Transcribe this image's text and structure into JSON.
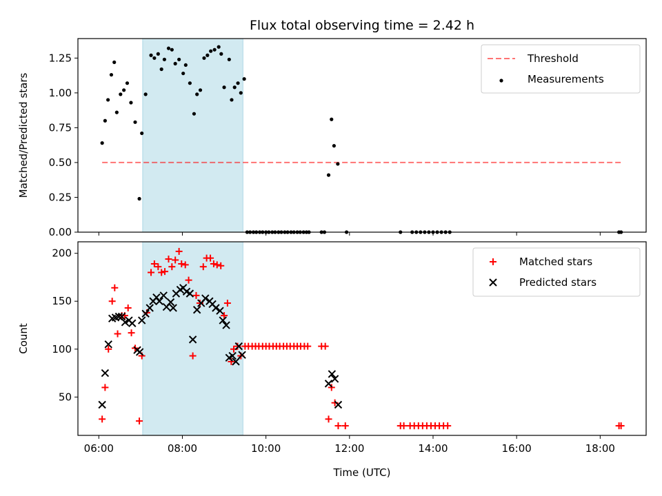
{
  "figure_title": "Flux total observing time = 2.42 h",
  "colors": {
    "shade": "#add8e6",
    "threshold": "#ff0000",
    "measurement": "#000000",
    "matched": "#ff0000",
    "predicted": "#000000"
  },
  "chart_data": [
    {
      "type": "scatter",
      "ylabel": "Matched/Predicted stars",
      "xlabel": "",
      "xlim_hours": [
        5.5,
        19.1
      ],
      "ylim": [
        0,
        1.39
      ],
      "y_ticks": [
        {
          "value": 0.0,
          "label": "0.00"
        },
        {
          "value": 0.25,
          "label": "0.25"
        },
        {
          "value": 0.5,
          "label": "0.50"
        },
        {
          "value": 0.75,
          "label": "0.75"
        },
        {
          "value": 1.0,
          "label": "1.00"
        },
        {
          "value": 1.25,
          "label": "1.25"
        }
      ],
      "legend_position": "top-right",
      "shaded_span_hours": [
        7.05,
        9.45
      ],
      "threshold": {
        "name": "Threshold",
        "value": 0.5,
        "x_range_hours": [
          6.08,
          18.5
        ]
      },
      "series": [
        {
          "name": "Measurements",
          "marker": "dot",
          "points": [
            [
              6.08,
              0.64
            ],
            [
              6.15,
              0.8
            ],
            [
              6.22,
              0.95
            ],
            [
              6.3,
              1.13
            ],
            [
              6.37,
              1.22
            ],
            [
              6.43,
              0.86
            ],
            [
              6.52,
              0.99
            ],
            [
              6.6,
              1.02
            ],
            [
              6.68,
              1.07
            ],
            [
              6.77,
              0.93
            ],
            [
              6.87,
              0.79
            ],
            [
              6.97,
              0.24
            ],
            [
              7.03,
              0.71
            ],
            [
              7.12,
              0.99
            ],
            [
              7.25,
              1.27
            ],
            [
              7.33,
              1.25
            ],
            [
              7.42,
              1.28
            ],
            [
              7.5,
              1.17
            ],
            [
              7.57,
              1.24
            ],
            [
              7.67,
              1.32
            ],
            [
              7.75,
              1.31
            ],
            [
              7.83,
              1.21
            ],
            [
              7.92,
              1.24
            ],
            [
              8.02,
              1.14
            ],
            [
              8.08,
              1.2
            ],
            [
              8.18,
              1.07
            ],
            [
              8.28,
              0.85
            ],
            [
              8.35,
              0.99
            ],
            [
              8.43,
              1.02
            ],
            [
              8.52,
              1.25
            ],
            [
              8.6,
              1.27
            ],
            [
              8.68,
              1.3
            ],
            [
              8.77,
              1.31
            ],
            [
              8.87,
              1.33
            ],
            [
              8.93,
              1.28
            ],
            [
              9.0,
              1.04
            ],
            [
              9.12,
              1.24
            ],
            [
              9.18,
              0.95
            ],
            [
              9.25,
              1.04
            ],
            [
              9.33,
              1.07
            ],
            [
              9.4,
              1.0
            ],
            [
              9.48,
              1.1
            ],
            [
              9.55,
              0.0
            ],
            [
              9.62,
              0.0
            ],
            [
              9.7,
              0.0
            ],
            [
              9.77,
              0.0
            ],
            [
              9.85,
              0.0
            ],
            [
              9.92,
              0.0
            ],
            [
              10.0,
              0.0
            ],
            [
              10.07,
              0.0
            ],
            [
              10.15,
              0.0
            ],
            [
              10.22,
              0.0
            ],
            [
              10.3,
              0.0
            ],
            [
              10.37,
              0.0
            ],
            [
              10.45,
              0.0
            ],
            [
              10.52,
              0.0
            ],
            [
              10.6,
              0.0
            ],
            [
              10.67,
              0.0
            ],
            [
              10.75,
              0.0
            ],
            [
              10.82,
              0.0
            ],
            [
              10.9,
              0.0
            ],
            [
              10.97,
              0.0
            ],
            [
              11.03,
              0.0
            ],
            [
              11.33,
              0.0
            ],
            [
              11.4,
              0.0
            ],
            [
              11.5,
              0.41
            ],
            [
              11.57,
              0.81
            ],
            [
              11.63,
              0.62
            ],
            [
              11.72,
              0.49
            ],
            [
              11.93,
              0.0
            ],
            [
              13.22,
              0.0
            ],
            [
              13.5,
              0.0
            ],
            [
              13.6,
              0.0
            ],
            [
              13.7,
              0.0
            ],
            [
              13.8,
              0.0
            ],
            [
              13.9,
              0.0
            ],
            [
              14.0,
              0.0
            ],
            [
              14.1,
              0.0
            ],
            [
              14.2,
              0.0
            ],
            [
              14.3,
              0.0
            ],
            [
              14.4,
              0.0
            ],
            [
              18.45,
              0.0
            ],
            [
              18.5,
              0.0
            ]
          ]
        }
      ]
    },
    {
      "type": "scatter",
      "ylabel": "Count",
      "xlabel": "Time (UTC)",
      "xlim_hours": [
        5.5,
        19.1
      ],
      "ylim": [
        10,
        212
      ],
      "y_ticks": [
        {
          "value": 50,
          "label": "50"
        },
        {
          "value": 100,
          "label": "100"
        },
        {
          "value": 150,
          "label": "150"
        },
        {
          "value": 200,
          "label": "200"
        }
      ],
      "x_ticks": [
        {
          "value": 6,
          "label": "06:00"
        },
        {
          "value": 8,
          "label": "08:00"
        },
        {
          "value": 10,
          "label": "10:00"
        },
        {
          "value": 12,
          "label": "12:00"
        },
        {
          "value": 14,
          "label": "14:00"
        },
        {
          "value": 16,
          "label": "16:00"
        },
        {
          "value": 18,
          "label": "18:00"
        }
      ],
      "legend_position": "top-right",
      "shaded_span_hours": [
        7.05,
        9.45
      ],
      "series": [
        {
          "name": "Matched stars",
          "marker": "plus",
          "points": [
            [
              6.08,
              27
            ],
            [
              6.15,
              60
            ],
            [
              6.23,
              100
            ],
            [
              6.32,
              150
            ],
            [
              6.38,
              164
            ],
            [
              6.45,
              116
            ],
            [
              6.55,
              135
            ],
            [
              6.62,
              135
            ],
            [
              6.7,
              143
            ],
            [
              6.78,
              117
            ],
            [
              6.87,
              101
            ],
            [
              6.97,
              25
            ],
            [
              7.03,
              93
            ],
            [
              7.15,
              138
            ],
            [
              7.25,
              180
            ],
            [
              7.33,
              189
            ],
            [
              7.42,
              186
            ],
            [
              7.5,
              180
            ],
            [
              7.58,
              181
            ],
            [
              7.67,
              194
            ],
            [
              7.75,
              186
            ],
            [
              7.83,
              193
            ],
            [
              7.92,
              202
            ],
            [
              7.98,
              189
            ],
            [
              8.07,
              188
            ],
            [
              8.15,
              172
            ],
            [
              8.25,
              93
            ],
            [
              8.33,
              156
            ],
            [
              8.42,
              148
            ],
            [
              8.5,
              186
            ],
            [
              8.58,
              195
            ],
            [
              8.67,
              195
            ],
            [
              8.75,
              189
            ],
            [
              8.83,
              188
            ],
            [
              8.92,
              187
            ],
            [
              9.0,
              135
            ],
            [
              9.08,
              148
            ],
            [
              9.17,
              87
            ],
            [
              9.23,
              100
            ],
            [
              9.32,
              103
            ],
            [
              9.4,
              93
            ],
            [
              9.5,
              103
            ],
            [
              9.58,
              103
            ],
            [
              9.67,
              103
            ],
            [
              9.75,
              103
            ],
            [
              9.83,
              103
            ],
            [
              9.92,
              103
            ],
            [
              10.0,
              103
            ],
            [
              10.08,
              103
            ],
            [
              10.17,
              103
            ],
            [
              10.25,
              103
            ],
            [
              10.33,
              103
            ],
            [
              10.42,
              103
            ],
            [
              10.5,
              103
            ],
            [
              10.58,
              103
            ],
            [
              10.67,
              103
            ],
            [
              10.75,
              103
            ],
            [
              10.83,
              103
            ],
            [
              10.92,
              103
            ],
            [
              11.0,
              103
            ],
            [
              11.33,
              103
            ],
            [
              11.42,
              103
            ],
            [
              11.5,
              27
            ],
            [
              11.57,
              60
            ],
            [
              11.65,
              44
            ],
            [
              11.73,
              20
            ],
            [
              11.9,
              20
            ],
            [
              13.22,
              20
            ],
            [
              13.3,
              20
            ],
            [
              13.45,
              20
            ],
            [
              13.55,
              20
            ],
            [
              13.65,
              20
            ],
            [
              13.75,
              20
            ],
            [
              13.85,
              20
            ],
            [
              13.95,
              20
            ],
            [
              14.05,
              20
            ],
            [
              14.15,
              20
            ],
            [
              14.25,
              20
            ],
            [
              14.35,
              20
            ],
            [
              18.45,
              20
            ],
            [
              18.5,
              20
            ]
          ]
        },
        {
          "name": "Predicted stars",
          "marker": "x",
          "points": [
            [
              6.08,
              42
            ],
            [
              6.15,
              75
            ],
            [
              6.23,
              105
            ],
            [
              6.32,
              132
            ],
            [
              6.4,
              133
            ],
            [
              6.48,
              134
            ],
            [
              6.55,
              134
            ],
            [
              6.63,
              128
            ],
            [
              6.72,
              130
            ],
            [
              6.8,
              127
            ],
            [
              6.92,
              99
            ],
            [
              6.98,
              97
            ],
            [
              7.03,
              130
            ],
            [
              7.12,
              137
            ],
            [
              7.22,
              143
            ],
            [
              7.3,
              150
            ],
            [
              7.38,
              154
            ],
            [
              7.45,
              150
            ],
            [
              7.55,
              156
            ],
            [
              7.62,
              144
            ],
            [
              7.72,
              149
            ],
            [
              7.78,
              143
            ],
            [
              7.85,
              158
            ],
            [
              7.95,
              162
            ],
            [
              8.02,
              164
            ],
            [
              8.1,
              160
            ],
            [
              8.18,
              158
            ],
            [
              8.25,
              110
            ],
            [
              8.35,
              141
            ],
            [
              8.45,
              148
            ],
            [
              8.55,
              153
            ],
            [
              8.65,
              150
            ],
            [
              8.72,
              147
            ],
            [
              8.8,
              143
            ],
            [
              8.9,
              140
            ],
            [
              8.97,
              130
            ],
            [
              9.05,
              125
            ],
            [
              9.12,
              91
            ],
            [
              9.2,
              93
            ],
            [
              9.28,
              87
            ],
            [
              9.35,
              103
            ],
            [
              9.43,
              94
            ],
            [
              11.5,
              64
            ],
            [
              11.58,
              74
            ],
            [
              11.65,
              69
            ],
            [
              11.73,
              42
            ]
          ]
        }
      ]
    }
  ]
}
